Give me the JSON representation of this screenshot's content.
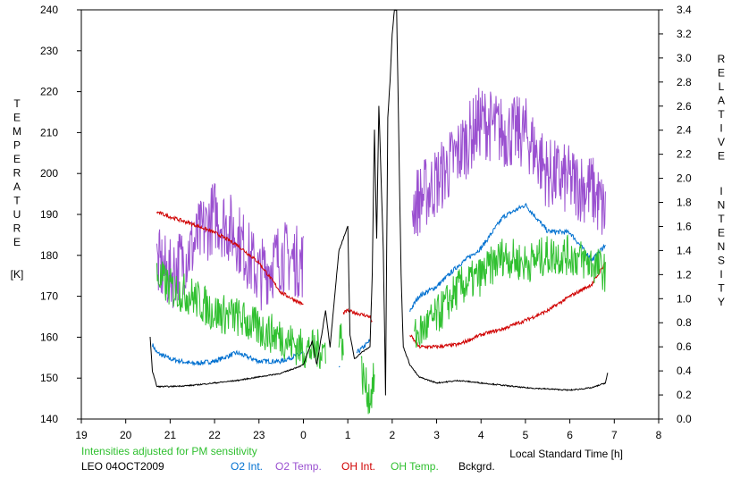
{
  "chart_data": {
    "type": "line",
    "x_axis": {
      "label": "Local Standard Time [h]",
      "range": [
        19,
        32
      ],
      "tick_values": [
        19,
        20,
        21,
        22,
        23,
        24,
        25,
        26,
        27,
        28,
        29,
        30,
        31,
        32
      ],
      "tick_labels": [
        "19",
        "20",
        "21",
        "22",
        "23",
        "0",
        "1",
        "2",
        "3",
        "4",
        "5",
        "6",
        "7",
        "8"
      ]
    },
    "y_left": {
      "label_letters": [
        "T",
        "E",
        "M",
        "P",
        "E",
        "R",
        "A",
        "T",
        "U",
        "R",
        "E"
      ],
      "unit": "[K]",
      "range": [
        140,
        240
      ],
      "ticks": [
        140,
        150,
        160,
        170,
        180,
        190,
        200,
        210,
        220,
        230,
        240
      ]
    },
    "y_right": {
      "label_word1": [
        "R",
        "E",
        "L",
        "A",
        "T",
        "I",
        "V",
        "E"
      ],
      "label_word2": [
        "I",
        "N",
        "T",
        "E",
        "N",
        "S",
        "I",
        "T",
        "Y"
      ],
      "range": [
        0.0,
        3.4
      ],
      "ticks": [
        "0.0",
        "0.2",
        "0.4",
        "0.6",
        "0.8",
        "1.0",
        "1.2",
        "1.4",
        "1.6",
        "1.8",
        "2.0",
        "2.2",
        "2.4",
        "2.6",
        "2.8",
        "3.0",
        "3.2",
        "3.4"
      ]
    },
    "note": "Intensities adjusted for PM sensitivity",
    "station": "LEO 04OCT2009",
    "series": [
      {
        "name": "O2 Int.",
        "axis": "right",
        "color": "#0070d0",
        "noise": 0.02,
        "segments": [
          {
            "x": [
              20.6,
              20.7,
              21.0,
              21.5,
              22.0,
              22.5,
              23.0,
              23.5,
              24.0
            ],
            "y": [
              0.62,
              0.55,
              0.5,
              0.46,
              0.48,
              0.55,
              0.48,
              0.48,
              0.55
            ]
          },
          {
            "x": [
              24.8,
              24.82
            ],
            "y": [
              0.42,
              0.42
            ]
          },
          {
            "x": [
              25.2,
              25.3,
              25.5
            ],
            "y": [
              0.55,
              0.58,
              0.65
            ]
          },
          {
            "x": [
              26.4,
              26.6,
              27.0,
              27.5,
              28.0,
              28.5,
              29.0,
              29.5,
              30.0,
              30.5,
              30.8
            ],
            "y": [
              0.9,
              1.02,
              1.1,
              1.28,
              1.42,
              1.68,
              1.78,
              1.56,
              1.55,
              1.32,
              1.45
            ]
          }
        ]
      },
      {
        "name": "O2 Temp.",
        "axis": "left",
        "color": "#9a50d0",
        "noise": 9,
        "segments": [
          {
            "x": [
              20.7,
              21.0,
              21.5,
              22.0,
              22.5,
              23.0,
              23.5,
              24.0
            ],
            "y": [
              178,
              175,
              182,
              190,
              185,
              175,
              180,
              178
            ]
          },
          {
            "x": [
              26.45,
              27.0,
              27.5,
              28.0,
              28.5,
              29.0,
              29.5,
              30.0,
              30.5,
              30.8
            ],
            "y": [
              192,
              198,
              205,
              213,
              210,
              210,
              200,
              198,
              196,
              190
            ]
          }
        ]
      },
      {
        "name": "OH Int.",
        "axis": "right",
        "color": "#d00000",
        "noise": 0.015,
        "segments": [
          {
            "x": [
              20.7,
              21.0,
              21.5,
              22.0,
              22.5,
              23.0,
              23.5,
              24.0
            ],
            "y": [
              1.72,
              1.68,
              1.62,
              1.55,
              1.45,
              1.3,
              1.05,
              0.95
            ]
          },
          {
            "x": [
              24.9,
              25.0,
              25.5,
              25.55
            ],
            "y": [
              0.88,
              0.9,
              0.85,
              0.8
            ]
          },
          {
            "x": [
              26.4,
              26.6,
              27.0,
              27.5,
              28.0,
              28.5,
              29.0,
              29.5,
              30.0,
              30.5,
              30.8
            ],
            "y": [
              0.7,
              0.6,
              0.6,
              0.62,
              0.7,
              0.75,
              0.82,
              0.9,
              1.02,
              1.12,
              1.3
            ]
          }
        ]
      },
      {
        "name": "OH Temp.",
        "axis": "left",
        "color": "#30c030",
        "noise": 5,
        "segments": [
          {
            "x": [
              20.7,
              21.0,
              21.5,
              22.0,
              22.5,
              23.0,
              23.5,
              24.0,
              24.5
            ],
            "y": [
              175,
              172,
              170,
              166,
              165,
              162,
              160,
              157,
              157
            ]
          },
          {
            "x": [
              24.8,
              24.9
            ],
            "y": [
              162,
              158
            ]
          },
          {
            "x": [
              25.3,
              25.4,
              25.5,
              25.6
            ],
            "y": [
              152,
              148,
              145,
              150
            ]
          },
          {
            "x": [
              26.5,
              27.0,
              27.5,
              28.0,
              28.5,
              29.0,
              29.5,
              30.0,
              30.5,
              30.8
            ],
            "y": [
              160,
              165,
              172,
              175,
              180,
              178,
              180,
              180,
              178,
              176
            ]
          }
        ]
      },
      {
        "name": "Bckgrd.",
        "axis": "right",
        "color": "#000000",
        "noise": 0.005,
        "segments": [
          {
            "x": [
              20.55,
              20.6,
              20.7,
              21.0,
              21.5,
              22.0,
              22.5,
              23.0,
              23.5,
              24.0,
              24.2,
              24.3,
              24.5,
              24.6,
              24.8,
              24.9,
              25.0,
              25.05,
              25.15,
              25.3,
              25.5,
              25.55,
              25.6,
              25.65,
              25.7,
              25.8,
              25.85,
              25.9,
              25.95,
              26.0,
              26.05,
              26.1,
              26.2,
              26.25,
              26.3,
              26.4,
              26.5,
              26.6,
              27.0,
              27.5,
              28.0,
              28.5,
              29.0,
              29.5,
              30.0,
              30.5,
              30.8,
              30.85
            ],
            "y": [
              0.68,
              0.4,
              0.27,
              0.27,
              0.28,
              0.3,
              0.32,
              0.35,
              0.38,
              0.45,
              0.65,
              0.45,
              0.9,
              0.6,
              1.4,
              1.5,
              1.6,
              0.7,
              0.5,
              0.55,
              0.6,
              1.2,
              2.4,
              1.5,
              2.6,
              1.4,
              0.2,
              2.5,
              2.8,
              3.2,
              3.4,
              3.4,
              1.2,
              0.6,
              0.55,
              0.45,
              0.4,
              0.35,
              0.3,
              0.32,
              0.3,
              0.28,
              0.26,
              0.25,
              0.24,
              0.26,
              0.3,
              0.38
            ]
          }
        ]
      }
    ]
  }
}
